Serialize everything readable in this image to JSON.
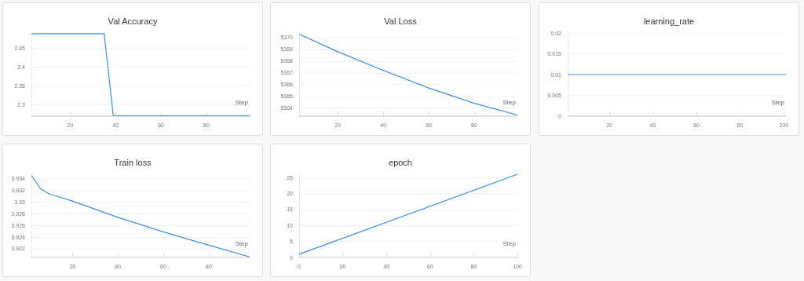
{
  "chart_data": [
    {
      "type": "line",
      "title": "Val Accuracy",
      "xlabel": "Step",
      "x": [
        3,
        35,
        39,
        99
      ],
      "values": [
        2.488,
        2.488,
        2.271,
        2.271
      ],
      "color": "#3a8ee6",
      "xlim": [
        3,
        99
      ],
      "xticks": [
        20,
        40,
        60,
        80
      ],
      "ylim": [
        2.27,
        2.49
      ],
      "yticks": [
        2.3,
        2.35,
        2.4,
        2.45
      ],
      "grid": "y"
    },
    {
      "type": "line",
      "title": "Val Loss",
      "xlabel": "Step",
      "x": [
        3,
        20,
        40,
        60,
        80,
        99
      ],
      "values": [
        5370.3,
        5368.8,
        5367.2,
        5365.7,
        5364.4,
        5363.4
      ],
      "color": "#3a8ee6",
      "xlim": [
        3,
        99
      ],
      "xticks": [
        20,
        40,
        60,
        80
      ],
      "ylim": [
        5363.3,
        5370.4
      ],
      "yticks": [
        5364,
        5365,
        5366,
        5367,
        5368,
        5369,
        5370
      ],
      "grid": "y"
    },
    {
      "type": "line",
      "title": "learning_rate",
      "xlabel": "Step",
      "x": [
        1,
        101
      ],
      "values": [
        0.01,
        0.01
      ],
      "color": "#3a8ee6",
      "xlim": [
        1,
        101
      ],
      "xticks": [
        20,
        40,
        60,
        80,
        100
      ],
      "ylim": [
        0,
        0.02
      ],
      "yticks": [
        0,
        0.005,
        0.01,
        0.015,
        0.02
      ],
      "grid": "y"
    },
    {
      "type": "line",
      "title": "Train loss",
      "xlabel": "Step",
      "x": [
        2,
        6,
        10,
        20,
        40,
        60,
        80,
        98
      ],
      "values": [
        3.9346,
        3.9323,
        3.9314,
        3.9302,
        3.9274,
        3.9249,
        3.9226,
        3.9206
      ],
      "color": "#3a8ee6",
      "xlim": [
        2,
        98
      ],
      "xticks": [
        20,
        40,
        60,
        80
      ],
      "ylim": [
        3.9205,
        3.9348
      ],
      "yticks": [
        3.922,
        3.924,
        3.926,
        3.928,
        3.93,
        3.932,
        3.934
      ],
      "grid": "y"
    },
    {
      "type": "line",
      "title": "epoch",
      "xlabel": "Step",
      "x": [
        0,
        100
      ],
      "values": [
        1,
        26
      ],
      "color": "#3a8ee6",
      "xlim": [
        0,
        100
      ],
      "xticks": [
        0,
        20,
        40,
        60,
        80,
        100
      ],
      "ylim": [
        0,
        26
      ],
      "yticks": [
        0,
        5,
        10,
        15,
        20,
        25
      ],
      "grid": "y"
    }
  ]
}
